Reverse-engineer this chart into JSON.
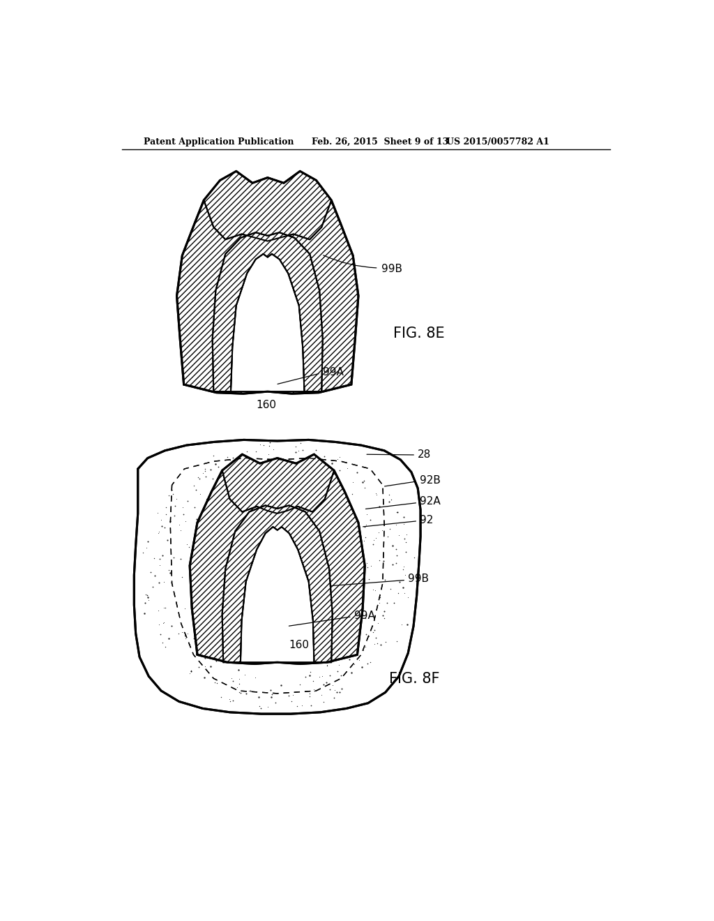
{
  "header_left": "Patent Application Publication",
  "header_mid": "Feb. 26, 2015  Sheet 9 of 13",
  "header_right": "US 2015/0057782 A1",
  "fig1_label": "FIG. 8E",
  "fig2_label": "FIG. 8F",
  "label_160_1": "160",
  "label_99A_1": "99A",
  "label_99B_1": "99B",
  "label_28": "28",
  "label_92B": "92B",
  "label_92A": "92A",
  "label_92": "92",
  "label_99B_2": "99B",
  "label_99A_2": "99A",
  "label_160_2": "160",
  "line_color": "#000000",
  "bg_color": "#ffffff"
}
